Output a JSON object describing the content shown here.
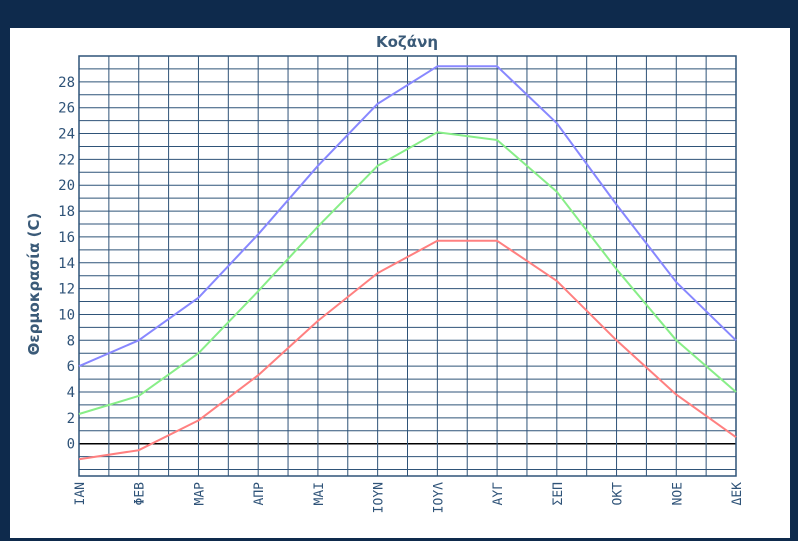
{
  "chart_data": {
    "type": "line",
    "title": "Κοζάνη",
    "xlabel": "",
    "ylabel": "Θερμοκρασία (C)",
    "categories": [
      "ΙΑΝ",
      "ΦΕΒ",
      "ΜΑΡ",
      "ΑΠΡ",
      "ΜΑΙ",
      "ΙΟΥΝ",
      "ΙΟΥΛ",
      "ΑΥΓ",
      "ΣΕΠ",
      "ΟΚΤ",
      "ΝΟΕ",
      "ΔΕΚ"
    ],
    "ylim": [
      -2.5,
      30
    ],
    "yticks": [
      0,
      2,
      4,
      6,
      8,
      10,
      12,
      14,
      16,
      18,
      20,
      22,
      24,
      26,
      28
    ],
    "grid": true,
    "series": [
      {
        "color": "#8888ff",
        "values": [
          6.0,
          8.0,
          11.3,
          16.2,
          21.5,
          26.3,
          29.2,
          29.2,
          24.8,
          18.5,
          12.5,
          8.0
        ]
      },
      {
        "color": "#88ee88",
        "values": [
          2.3,
          3.7,
          7.0,
          11.8,
          16.8,
          21.5,
          24.1,
          23.5,
          19.5,
          13.5,
          8.0,
          4.0
        ]
      },
      {
        "color": "#ff8080",
        "values": [
          -1.2,
          -0.5,
          1.8,
          5.3,
          9.5,
          13.2,
          15.7,
          15.7,
          12.6,
          8.0,
          3.8,
          0.5
        ]
      }
    ]
  }
}
